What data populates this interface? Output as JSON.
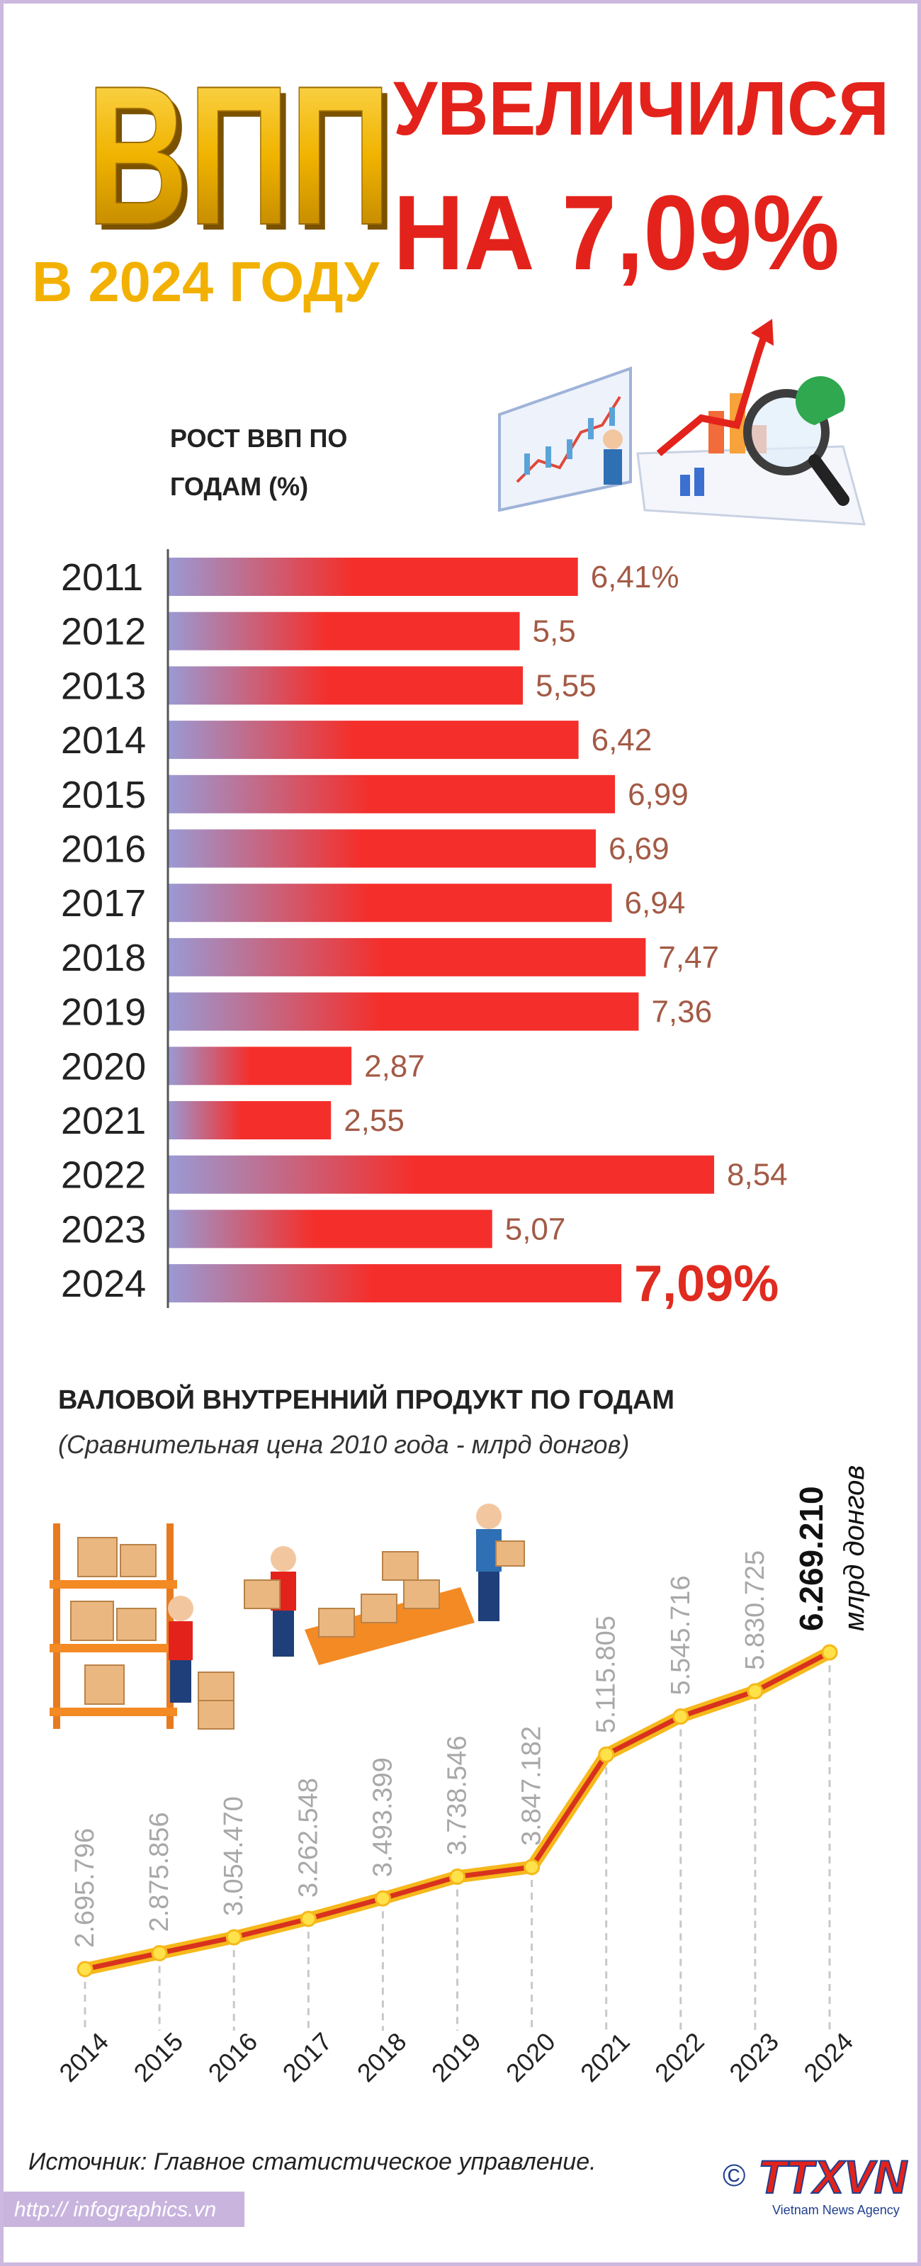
{
  "header": {
    "title": "ВПП",
    "subtitle": "В 2024 ГОДУ",
    "headline_1": "УВЕЛИЧИЛСЯ",
    "headline_2": "НА 7,09%"
  },
  "chart_data": [
    {
      "type": "bar",
      "orientation": "horizontal",
      "title": "РОСТ ВВП ПО ГОДАМ (%)",
      "categories": [
        "2011",
        "2012",
        "2013",
        "2014",
        "2015",
        "2016",
        "2017",
        "2018",
        "2019",
        "2020",
        "2021",
        "2022",
        "2023",
        "2024"
      ],
      "values": [
        6.41,
        5.5,
        5.55,
        6.42,
        6.99,
        6.69,
        6.94,
        7.47,
        7.36,
        2.87,
        2.55,
        8.54,
        5.07,
        7.09
      ],
      "value_labels": [
        "6,41%",
        "5,5",
        "5,55",
        "6,42",
        "6,99",
        "6,69",
        "6,94",
        "7,47",
        "7,36",
        "2,87",
        "2,55",
        "8,54",
        "5,07",
        "7,09%"
      ],
      "color": "#f42f2b",
      "gradient_start": "#9a9ad4"
    },
    {
      "type": "line",
      "title": "ВАЛОВОЙ ВНУТРЕННИЙ ПРОДУКТ ПО ГОДАМ",
      "subtitle": "(Сравнительная цена 2010 года - млрд донгов)",
      "x": [
        2014,
        2015,
        2016,
        2017,
        2018,
        2019,
        2020,
        2021,
        2022,
        2023,
        2024
      ],
      "values": [
        2695796,
        2875856,
        3054470,
        3262548,
        3493399,
        3738546,
        3847182,
        5115805,
        5545716,
        5830725,
        6269210
      ],
      "value_labels": [
        "2.695.796",
        "2.875.856",
        "3.054.470",
        "3.262.548",
        "3.493.399",
        "3.738.546",
        "3.847.182",
        "5.115.805",
        "5.545.716",
        "5.830.725",
        "6.269.210"
      ],
      "unit_label": "млрд донгов",
      "color": "#d8321f",
      "outline_color": "#f6b81a"
    }
  ],
  "footer": {
    "source": "Источник: Главное статистическое управление.",
    "url": "http:// infographics.vn",
    "copyright": "©",
    "logo": "TTXVN",
    "logo_subtitle": "Vietnam News Agency"
  }
}
